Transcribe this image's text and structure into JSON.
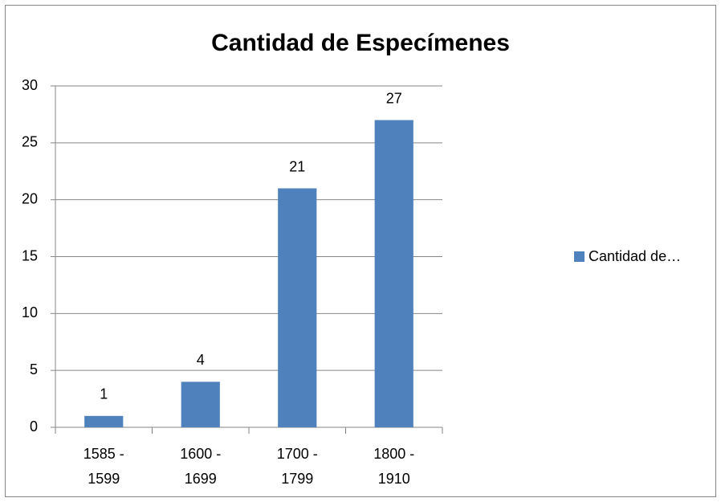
{
  "chart_data": {
    "type": "bar",
    "title": "Cantidad de Especímenes",
    "categories": [
      "1585 - 1599",
      "1600 - 1699",
      "1700 - 1799",
      "1800 - 1910"
    ],
    "series": [
      {
        "name": "Cantidad de…",
        "color": "#4f81bd",
        "values": [
          1,
          4,
          21,
          27
        ]
      }
    ],
    "ylim": [
      0,
      30
    ],
    "yticks": [
      0,
      5,
      10,
      15,
      20,
      25,
      30
    ],
    "grid": true,
    "legend": "right"
  }
}
